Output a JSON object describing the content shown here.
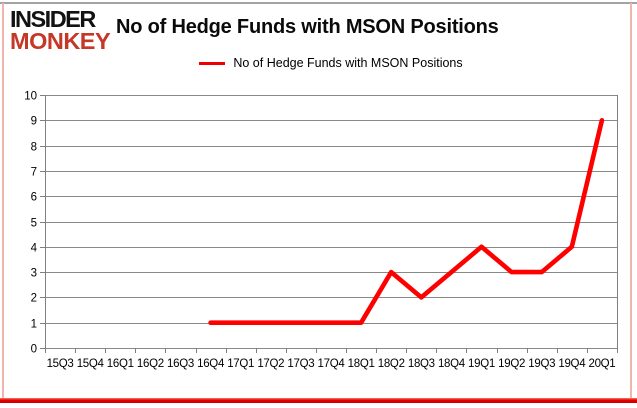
{
  "branding": {
    "logo_line1": "INSIDER",
    "logo_line2": "MONKEY",
    "logo_color_primary": "#121212",
    "logo_color_secondary": "#c53727"
  },
  "header": {
    "title": "No of Hedge Funds with MSON Positions"
  },
  "legend": {
    "label": "No of Hedge Funds with MSON Positions",
    "marker_color": "#ee0000",
    "position": "top-center"
  },
  "chart_data": {
    "type": "line",
    "title": "No of Hedge Funds with MSON Positions",
    "categories": [
      "15Q3",
      "15Q4",
      "16Q1",
      "16Q2",
      "16Q3",
      "16Q4",
      "17Q1",
      "17Q2",
      "17Q3",
      "17Q4",
      "18Q1",
      "18Q2",
      "18Q3",
      "18Q4",
      "19Q1",
      "19Q2",
      "19Q3",
      "19Q4",
      "20Q1"
    ],
    "series": [
      {
        "name": "No of Hedge Funds with MSON Positions",
        "color": "#ff0000",
        "values": [
          null,
          null,
          null,
          null,
          null,
          1,
          1,
          1,
          1,
          1,
          1,
          3,
          2,
          3,
          4,
          3,
          3,
          4,
          9
        ]
      }
    ],
    "ylim": [
      0,
      10
    ],
    "yticks": [
      0,
      1,
      2,
      3,
      4,
      5,
      6,
      7,
      8,
      9,
      10
    ],
    "grid": "horizontal",
    "legend_position": "top"
  },
  "colors": {
    "gridline": "#888888",
    "axis_line": "#808080",
    "axis_text": "#000000",
    "frame_top": "#a3a3a3",
    "frame_sides": "#f0b6ae",
    "frame_bottom": "#e80000"
  }
}
